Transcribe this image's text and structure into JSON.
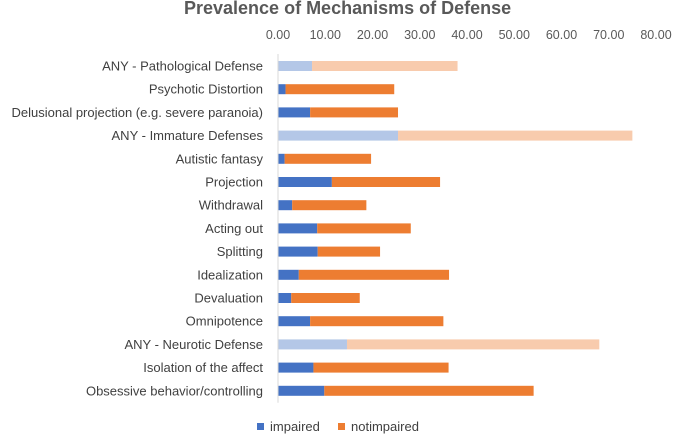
{
  "chart_data": {
    "type": "bar",
    "orientation": "horizontal",
    "stacked": true,
    "title": "Prevalence of Mechanisms of Defense",
    "xlim": [
      0,
      80
    ],
    "xticks": [
      "0.00",
      "10.00",
      "20.00",
      "30.00",
      "40.00",
      "50.00",
      "60.00",
      "70.00",
      "80.00"
    ],
    "xtick_values": [
      0,
      10,
      20,
      30,
      40,
      50,
      60,
      70,
      80
    ],
    "tick_position": "top",
    "grid": false,
    "legend_position": "bottom",
    "categories": [
      "ANY - Pathological Defense",
      "Psychotic Distortion",
      "Delusional projection (e.g. severe paranoia)",
      "ANY - Immature Defenses",
      "Autistic fantasy",
      "Projection",
      "Withdrawal",
      "Acting out",
      "Splitting",
      "Idealization",
      "Devaluation",
      "Omnipotence",
      "ANY - Neurotic Defense",
      "Isolation of the affect",
      "Obsessive behavior/controlling"
    ],
    "highlighted_categories": [
      "ANY - Pathological Defense",
      "ANY - Immature Defenses",
      "ANY - Neurotic Defense"
    ],
    "series": [
      {
        "name": "impaired",
        "values": [
          7.2,
          1.6,
          6.8,
          25.4,
          1.4,
          11.4,
          3.0,
          8.3,
          8.4,
          4.4,
          2.8,
          6.8,
          14.6,
          7.5,
          9.8
        ]
      },
      {
        "name": "notimpaired",
        "values": [
          30.8,
          23.0,
          18.6,
          49.6,
          18.3,
          22.9,
          15.7,
          19.8,
          13.2,
          31.8,
          14.5,
          28.2,
          53.4,
          28.6,
          44.3
        ]
      }
    ],
    "colors": {
      "impaired": "#4472c4",
      "notimpaired": "#ed7d31",
      "impaired_light": "#b4c7e7",
      "notimpaired_light": "#f8cbad"
    }
  }
}
